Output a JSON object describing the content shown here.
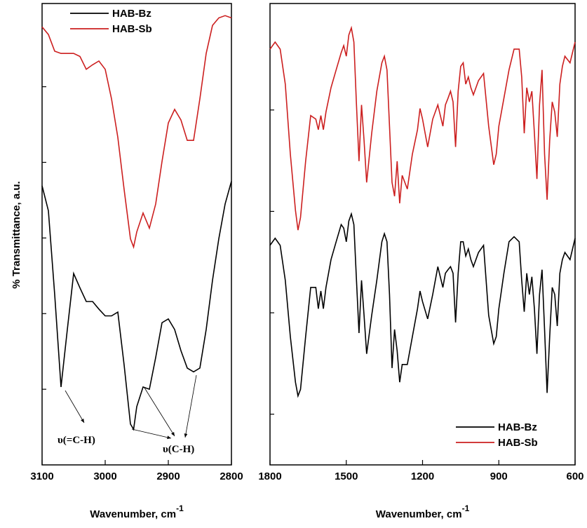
{
  "chart_data": [
    {
      "type": "line",
      "ylabel": "% Transmittance, a.u.",
      "xlabel": "Wavenumber, cm",
      "xlabel_superscript": "-1",
      "xlim": [
        3100,
        2800
      ],
      "xticks": [
        3100,
        3000,
        2900,
        2800
      ],
      "ylim": [
        0,
        6.1
      ],
      "yticks": [
        1,
        2,
        3,
        4,
        5
      ],
      "legend": "upper center",
      "annotations": [
        "υ(=C-H)",
        "υ(C-H)"
      ],
      "x": [
        3100,
        3090,
        3080,
        3070,
        3060,
        3050,
        3040,
        3030,
        3020,
        3010,
        3000,
        2990,
        2980,
        2970,
        2960,
        2955,
        2950,
        2940,
        2930,
        2920,
        2910,
        2900,
        2890,
        2880,
        2870,
        2860,
        2850,
        2840,
        2830,
        2820,
        2810,
        2800
      ],
      "series": [
        {
          "name": "HAB-Bz",
          "color": "#000000",
          "values": [
            3.69,
            3.36,
            2.25,
            1.03,
            1.79,
            2.53,
            2.34,
            2.16,
            2.16,
            2.06,
            1.97,
            1.97,
            2.02,
            1.32,
            0.54,
            0.47,
            0.77,
            1.03,
            1.0,
            1.42,
            1.88,
            1.93,
            1.79,
            1.51,
            1.28,
            1.23,
            1.28,
            1.79,
            2.44,
            2.99,
            3.45,
            3.75
          ]
        },
        {
          "name": "HAB-Sb",
          "color": "#cc1f1f",
          "values": [
            5.79,
            5.69,
            5.47,
            5.44,
            5.44,
            5.44,
            5.4,
            5.23,
            5.29,
            5.34,
            5.23,
            4.84,
            4.33,
            3.64,
            2.99,
            2.88,
            3.08,
            3.33,
            3.13,
            3.45,
            4.01,
            4.52,
            4.7,
            4.56,
            4.29,
            4.29,
            4.84,
            5.44,
            5.81,
            5.91,
            5.94,
            5.91
          ]
        }
      ]
    },
    {
      "type": "line",
      "xlabel": "Wavenumber, cm",
      "xlabel_superscript": "-1",
      "xlim": [
        1800,
        600
      ],
      "xticks": [
        1800,
        1500,
        1200,
        900,
        600
      ],
      "ylim": [
        0,
        9.1
      ],
      "yticks": [
        1,
        3,
        5,
        7
      ],
      "legend": "lower right",
      "x": [
        1800,
        1780,
        1760,
        1740,
        1720,
        1700,
        1690,
        1680,
        1660,
        1640,
        1620,
        1610,
        1600,
        1590,
        1580,
        1560,
        1540,
        1520,
        1510,
        1500,
        1490,
        1480,
        1470,
        1460,
        1450,
        1440,
        1430,
        1420,
        1400,
        1380,
        1360,
        1350,
        1340,
        1330,
        1320,
        1310,
        1300,
        1290,
        1280,
        1260,
        1240,
        1220,
        1210,
        1200,
        1180,
        1160,
        1140,
        1120,
        1110,
        1100,
        1090,
        1080,
        1070,
        1060,
        1050,
        1040,
        1030,
        1020,
        1010,
        1000,
        980,
        960,
        940,
        920,
        910,
        900,
        880,
        860,
        840,
        820,
        810,
        800,
        790,
        780,
        770,
        760,
        750,
        740,
        730,
        720,
        710,
        700,
        690,
        680,
        670,
        660,
        650,
        640,
        620,
        600
      ],
      "series": [
        {
          "name": "HAB-Bz",
          "color": "#000000",
          "values": [
            4.33,
            4.47,
            4.33,
            3.64,
            2.53,
            1.63,
            1.36,
            1.49,
            2.53,
            3.5,
            3.5,
            3.08,
            3.43,
            3.08,
            3.5,
            4.05,
            4.4,
            4.74,
            4.67,
            4.4,
            4.81,
            4.95,
            4.74,
            3.64,
            2.6,
            3.64,
            2.95,
            2.19,
            2.95,
            3.64,
            4.4,
            4.56,
            4.4,
            3.36,
            1.91,
            2.67,
            2.25,
            1.63,
            1.98,
            1.98,
            2.53,
            3.08,
            3.43,
            3.22,
            2.88,
            3.36,
            3.91,
            3.5,
            3.78,
            3.85,
            3.91,
            3.78,
            2.81,
            3.78,
            4.4,
            4.4,
            4.12,
            4.26,
            4.05,
            3.91,
            4.19,
            4.33,
            2.95,
            2.39,
            2.53,
            3.08,
            3.78,
            4.4,
            4.5,
            4.4,
            3.64,
            3.02,
            3.78,
            3.36,
            3.71,
            3.08,
            2.19,
            3.36,
            3.85,
            2.67,
            1.42,
            2.53,
            3.5,
            3.36,
            2.74,
            3.78,
            4.05,
            4.19,
            4.05,
            4.47
          ]
        },
        {
          "name": "HAB-Sb",
          "color": "#cc1f1f",
          "values": [
            8.2,
            8.34,
            8.2,
            7.51,
            6.13,
            5.02,
            4.63,
            4.88,
            5.99,
            6.89,
            6.82,
            6.61,
            6.89,
            6.61,
            6.96,
            7.44,
            7.79,
            8.13,
            8.27,
            8.06,
            8.48,
            8.62,
            8.34,
            7.1,
            5.99,
            7.1,
            6.4,
            5.57,
            6.54,
            7.37,
            7.93,
            8.06,
            7.79,
            6.68,
            5.57,
            5.3,
            5.99,
            5.16,
            5.71,
            5.44,
            6.13,
            6.61,
            7.03,
            6.82,
            6.27,
            6.82,
            7.1,
            6.68,
            7.1,
            7.23,
            7.37,
            7.16,
            6.27,
            7.37,
            7.86,
            7.93,
            7.51,
            7.65,
            7.44,
            7.3,
            7.58,
            7.72,
            6.68,
            5.92,
            6.13,
            6.68,
            7.23,
            7.79,
            8.2,
            8.2,
            7.65,
            6.54,
            7.44,
            7.16,
            7.37,
            6.54,
            5.64,
            7.1,
            7.79,
            6.13,
            5.23,
            6.4,
            7.16,
            6.96,
            6.47,
            7.51,
            7.86,
            8.06,
            7.93,
            8.34
          ]
        }
      ]
    }
  ]
}
